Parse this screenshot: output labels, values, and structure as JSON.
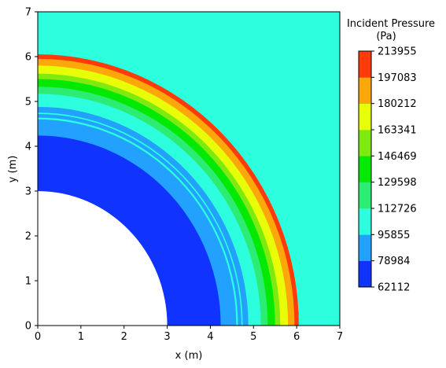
{
  "chart_data": {
    "type": "heatmap",
    "xlabel": "x (m)",
    "ylabel": "y (m)",
    "xlim": [
      0,
      7
    ],
    "ylim": [
      0,
      7
    ],
    "xticks": [
      0,
      1,
      2,
      3,
      4,
      5,
      6,
      7
    ],
    "yticks": [
      0,
      1,
      2,
      3,
      4,
      5,
      6,
      7
    ],
    "background_color": "#2cfede",
    "colorbar": {
      "title_lines": [
        "Incident Pressure",
        "(Pa)"
      ],
      "levels": [
        62112,
        78984,
        95855,
        112726,
        129598,
        146469,
        163341,
        180212,
        197083,
        213955
      ],
      "level_labels": [
        "62112",
        "78984",
        "95855",
        "112726",
        "129598",
        "146469",
        "163341",
        "180212",
        "197083",
        "213955"
      ],
      "colors": [
        "#1034fe",
        "#22a2fe",
        "#2cfede",
        "#2cec74",
        "#04e904",
        "#7fea10",
        "#e8fe08",
        "#fda80a",
        "#ff3b0a"
      ]
    },
    "inner_radius": 3.0,
    "rings": [
      {
        "r_outer": 6.05,
        "color": "#ff3b0a"
      },
      {
        "r_outer": 5.95,
        "color": "#fda80a"
      },
      {
        "r_outer": 5.8,
        "color": "#e8fe08"
      },
      {
        "r_outer": 5.62,
        "color": "#7fea10"
      },
      {
        "r_outer": 5.5,
        "color": "#04e904"
      },
      {
        "r_outer": 5.33,
        "color": "#2cec74"
      },
      {
        "r_outer": 5.17,
        "color": "#2cfede"
      },
      {
        "r_outer": 4.88,
        "color": "#22a2fe"
      },
      {
        "r_outer": 4.75,
        "color": "#2cfede"
      },
      {
        "r_outer": 4.72,
        "color": "#22a2fe"
      },
      {
        "r_outer": 4.64,
        "color": "#2cfede"
      },
      {
        "r_outer": 4.6,
        "color": "#22a2fe"
      },
      {
        "r_outer": 4.24,
        "color": "#1034fe"
      }
    ]
  }
}
